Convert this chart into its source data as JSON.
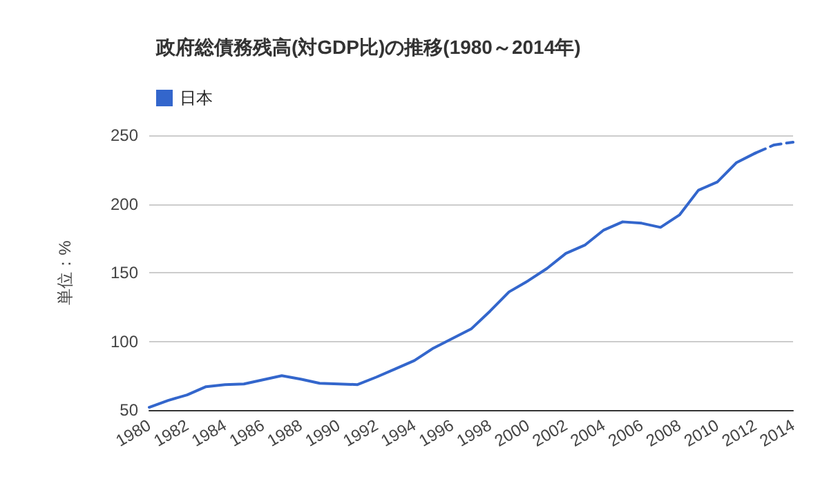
{
  "chart_data": {
    "type": "line",
    "title": "政府総債務残高(対GDP比)の推移(1980～2014年)",
    "ylabel": "単位：%",
    "x": [
      1980,
      1981,
      1982,
      1983,
      1984,
      1985,
      1986,
      1987,
      1988,
      1989,
      1990,
      1991,
      1992,
      1993,
      1994,
      1995,
      1996,
      1997,
      1998,
      1999,
      2000,
      2001,
      2002,
      2003,
      2004,
      2005,
      2006,
      2007,
      2008,
      2009,
      2010,
      2011,
      2012
    ],
    "series": [
      {
        "name": "日本",
        "color": "#3366cc",
        "values": [
          52,
          57,
          61,
          67,
          68.5,
          69,
          72,
          75,
          72.5,
          69.5,
          69,
          68.5,
          74,
          80,
          86,
          95,
          102,
          109,
          122,
          136,
          144,
          153,
          164,
          170,
          181,
          187,
          186,
          183,
          192,
          210,
          216,
          230,
          237
        ]
      },
      {
        "color": "#3366cc",
        "line_style": "dashed",
        "x": [
          2012,
          2013,
          2014
        ],
        "values": [
          237,
          243,
          245
        ]
      }
    ],
    "xlim": [
      1980,
      2014
    ],
    "xticks": [
      1980,
      1982,
      1984,
      1986,
      1988,
      1990,
      1992,
      1994,
      1996,
      1998,
      2000,
      2002,
      2004,
      2006,
      2008,
      2010,
      2012,
      2014
    ],
    "ylim": [
      50,
      250
    ],
    "yticks": [
      50,
      100,
      150,
      200,
      250
    ],
    "grid": "y",
    "legend": "top left",
    "line_style": "solid",
    "marker": "none"
  }
}
